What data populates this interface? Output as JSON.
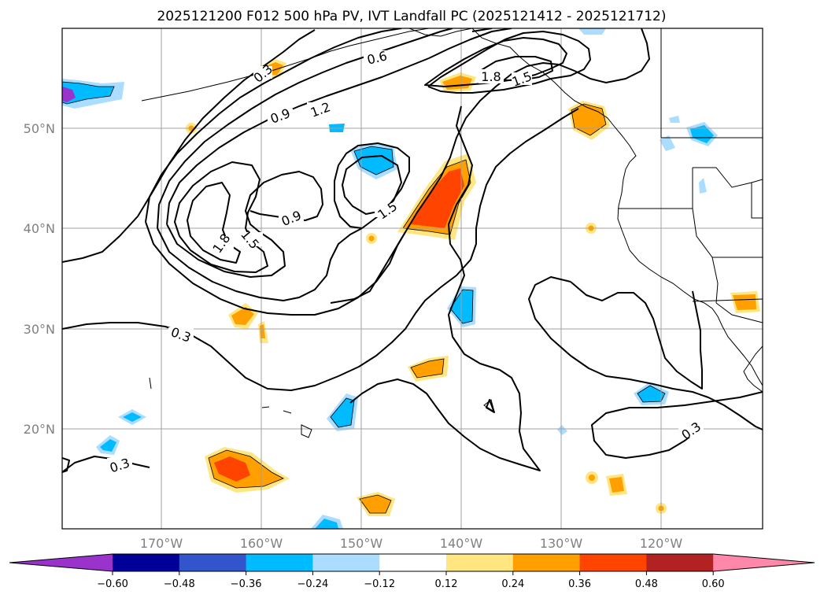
{
  "chart_data": {
    "type": "map-contour",
    "title": "2025121200 F012 500 hPa PV, IVT Landfall PC (2025121412 - 2025121712)",
    "lon_ticks": [
      "170°W",
      "160°W",
      "150°W",
      "140°W",
      "130°W",
      "120°W"
    ],
    "lat_ticks": [
      "50°N",
      "40°N",
      "30°N",
      "20°N"
    ],
    "lon_range": [
      -180,
      -110
    ],
    "lat_range": [
      10,
      60
    ],
    "contour_variable": "500 hPa PV (PVU)",
    "contour_levels": [
      0.3,
      0.6,
      0.9,
      1.2,
      1.5,
      1.8
    ],
    "contour_labels": [
      "0.6",
      "0.9",
      "1.2",
      "1.8",
      "1.5",
      "0.9",
      "1.5",
      "1.8",
      "1.5",
      "0.3",
      "0.3",
      "0.3",
      "0.3"
    ],
    "colorbar": {
      "ticks": [
        "−0.60",
        "−0.48",
        "−0.36",
        "−0.24",
        "−0.12",
        "0.12",
        "0.24",
        "0.36",
        "0.48",
        "0.60"
      ],
      "bounds": [
        -0.6,
        -0.48,
        -0.36,
        -0.24,
        -0.12,
        0.12,
        0.24,
        0.36,
        0.48,
        0.6
      ],
      "colors": [
        "#9933cc",
        "#000099",
        "#3355cc",
        "#00bbff",
        "#aaddff",
        "#ffffff",
        "#ffe680",
        "#ff9f00",
        "#ff4400",
        "#b22222",
        "#ff88aa"
      ],
      "extend": "both"
    }
  }
}
